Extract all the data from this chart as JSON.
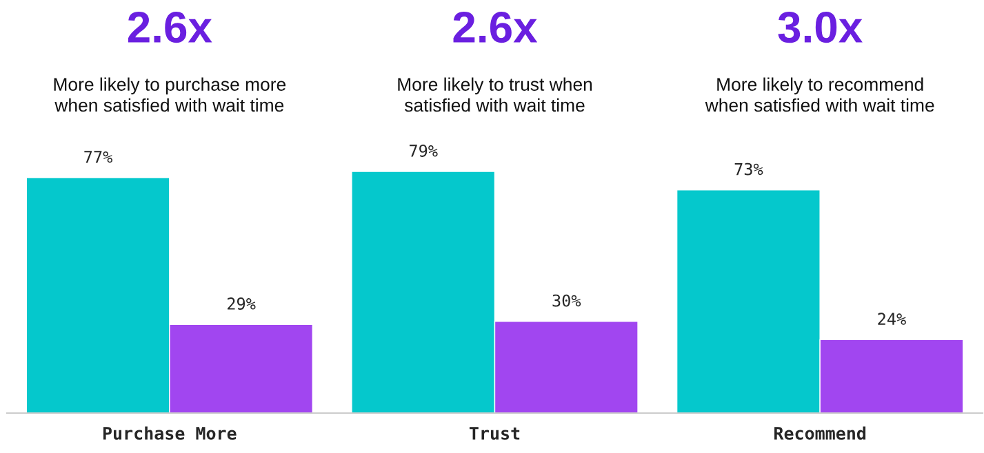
{
  "chart_data": {
    "type": "bar",
    "categories": [
      "Purchase More",
      "Trust",
      "Recommend"
    ],
    "series": [
      {
        "color": "#05c8cc",
        "values": [
          77,
          79,
          73
        ],
        "value_labels": [
          "77%",
          "79%",
          "73%"
        ]
      },
      {
        "color": "#a146f0",
        "values": [
          29,
          30,
          24
        ],
        "value_labels": [
          "29%",
          "30%",
          "24%"
        ]
      }
    ],
    "annotations": [
      "2.6x",
      "More likely to purchase more\nwhen satisfied with wait time",
      "2.6x",
      "More likely to trust when\nsatisfied with wait time",
      "3.0x",
      "More likely to recommend\nwhen satisfied with wait time"
    ],
    "grid": false,
    "legend": false
  }
}
